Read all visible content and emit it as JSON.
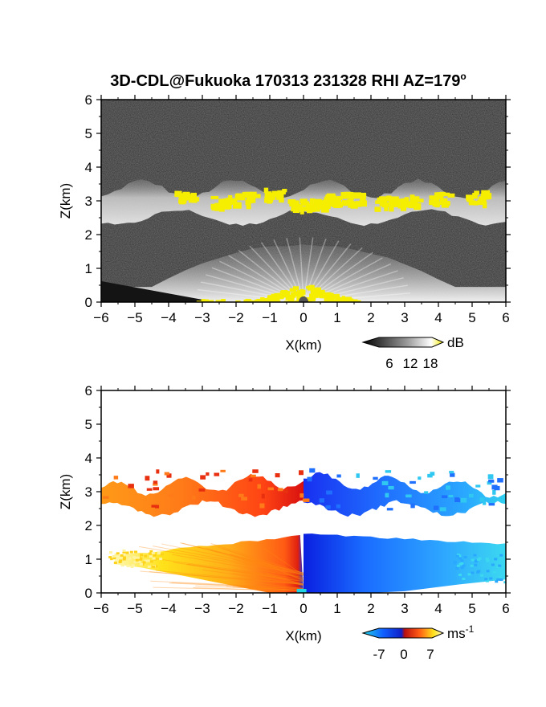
{
  "figure": {
    "title": "3D-CDL@Fukuoka 170313 231328 RHI AZ=179°",
    "title_main": "3D-CDL@Fukuoka 170313 231328 RHI AZ=179",
    "title_degree": "o"
  },
  "chart_data": [
    {
      "type": "heatmap",
      "name": "reflectivity-rhi",
      "xlabel": "X(km)",
      "ylabel": "Z(km)",
      "xlim": [
        -6,
        6
      ],
      "ylim": [
        0,
        6
      ],
      "x_ticks": [
        "-6",
        "-5",
        "-4",
        "-3",
        "-2",
        "-1",
        "0",
        "1",
        "2",
        "3",
        "4",
        "5",
        "6"
      ],
      "y_ticks": [
        "0",
        "1",
        "2",
        "3",
        "4",
        "5",
        "6"
      ],
      "colorbar": {
        "unit": "dB",
        "ticks": [
          "6",
          "12",
          "18"
        ],
        "range": [
          0,
          20
        ],
        "colors": [
          "#000000",
          "#ffffff",
          "#f6ee00"
        ]
      },
      "background_color": "#2f2f2f",
      "features": {
        "cloud_layer": {
          "base_km": 2.4,
          "top_km": 3.6,
          "x_range_km": [
            -6,
            6
          ]
        },
        "boundary_layer_fan": {
          "top_km": 1.7,
          "x_range_km": [
            -6,
            6
          ]
        },
        "strong_echo_color": "#f6ee00"
      }
    },
    {
      "type": "heatmap",
      "name": "doppler-velocity-rhi",
      "xlabel": "X(km)",
      "ylabel": "Z(km)",
      "xlim": [
        -6,
        6
      ],
      "ylim": [
        0,
        6
      ],
      "x_ticks": [
        "-6",
        "-5",
        "-4",
        "-3",
        "-2",
        "-1",
        "0",
        "1",
        "2",
        "3",
        "4",
        "5",
        "6"
      ],
      "y_ticks": [
        "0",
        "1",
        "2",
        "3",
        "4",
        "5",
        "6"
      ],
      "colorbar": {
        "unit": "ms",
        "unit_superscript": "-1",
        "ticks": [
          "-7",
          "0",
          "7"
        ],
        "range": [
          -7,
          7
        ],
        "colors": [
          "#1fd3e4",
          "#1030ff",
          "#b81010",
          "#ff4a14",
          "#ffe21a",
          "#fffac8"
        ]
      },
      "features": {
        "cloud_layer": {
          "base_km": 2.3,
          "top_km": 3.85,
          "x_range_km": [
            -6,
            6
          ]
        },
        "boundary_layer": {
          "top_km": 1.75,
          "x_range_km": [
            -5.6,
            6
          ]
        },
        "sign_change_x_km": 0
      }
    }
  ]
}
